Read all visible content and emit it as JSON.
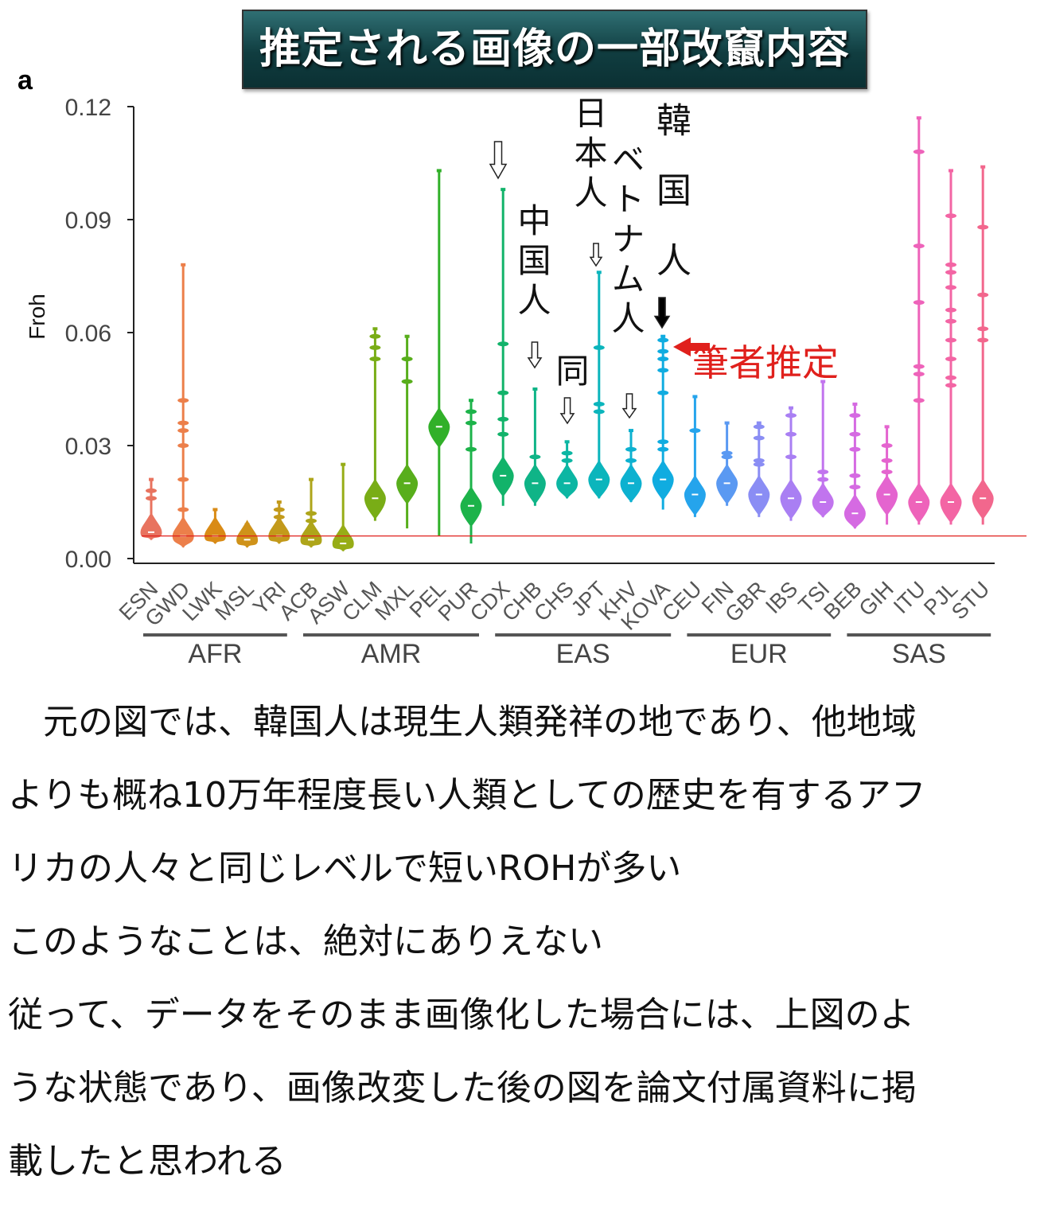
{
  "banner": {
    "title": "推定される画像の一部改竄内容"
  },
  "panel_label": "a",
  "chart_data": {
    "type": "violin",
    "ylabel": "Froh",
    "ylim": [
      0.0,
      0.12
    ],
    "yticks": [
      "0.00",
      "0.03",
      "0.06",
      "0.09",
      "0.12"
    ],
    "ytick_values": [
      0.0,
      0.03,
      0.06,
      0.09,
      0.12
    ],
    "reference_line": 0.006,
    "groups": [
      {
        "name": "AFR",
        "members": [
          "ESN",
          "GWD",
          "LWK",
          "MSL",
          "YRI"
        ]
      },
      {
        "name": "AMR",
        "members": [
          "ACB",
          "ASW",
          "CLM",
          "MXL",
          "PEL",
          "PUR"
        ]
      },
      {
        "name": "EAS",
        "members": [
          "CDX",
          "CHB",
          "CHS",
          "JPT",
          "KHV",
          "KOVA"
        ]
      },
      {
        "name": "EUR",
        "members": [
          "CEU",
          "FIN",
          "GBR",
          "IBS",
          "TSI"
        ]
      },
      {
        "name": "SAS",
        "members": [
          "BEB",
          "GIH",
          "ITU",
          "PJL",
          "STU"
        ]
      }
    ],
    "populations": [
      {
        "name": "ESN",
        "color": "#e8735f",
        "min": 0.005,
        "max": 0.021,
        "median": 0.007,
        "outliers": [
          0.016,
          0.018
        ]
      },
      {
        "name": "GWD",
        "color": "#ec7f4a",
        "min": 0.003,
        "max": 0.078,
        "median": 0.006,
        "outliers": [
          0.013,
          0.021,
          0.03,
          0.034,
          0.036,
          0.042
        ]
      },
      {
        "name": "LWK",
        "color": "#d98b17",
        "min": 0.004,
        "max": 0.013,
        "median": 0.006,
        "outliers": []
      },
      {
        "name": "MSL",
        "color": "#cf9219",
        "min": 0.003,
        "max": 0.009,
        "median": 0.005,
        "outliers": []
      },
      {
        "name": "YRI",
        "color": "#c39a1b",
        "min": 0.004,
        "max": 0.015,
        "median": 0.006,
        "outliers": [
          0.011,
          0.013
        ]
      },
      {
        "name": "ACB",
        "color": "#aea51a",
        "min": 0.003,
        "max": 0.021,
        "median": 0.005,
        "outliers": [
          0.01,
          0.012
        ]
      },
      {
        "name": "ASW",
        "color": "#97ad17",
        "min": 0.002,
        "max": 0.025,
        "median": 0.004,
        "outliers": []
      },
      {
        "name": "CLM",
        "color": "#79ad16",
        "min": 0.01,
        "max": 0.061,
        "median": 0.016,
        "outliers": [
          0.053,
          0.056,
          0.059
        ]
      },
      {
        "name": "MXL",
        "color": "#58ae1c",
        "min": 0.008,
        "max": 0.059,
        "median": 0.02,
        "outliers": [
          0.047,
          0.053
        ]
      },
      {
        "name": "PEL",
        "color": "#31b029",
        "min": 0.006,
        "max": 0.103,
        "median": 0.035,
        "outliers": []
      },
      {
        "name": "PUR",
        "color": "#1db34a",
        "min": 0.004,
        "max": 0.042,
        "median": 0.014,
        "outliers": [
          0.029,
          0.036,
          0.039
        ]
      },
      {
        "name": "CDX",
        "color": "#12b36a",
        "min": 0.014,
        "max": 0.098,
        "median": 0.022,
        "outliers": [
          0.033,
          0.037,
          0.044,
          0.057
        ]
      },
      {
        "name": "CHB",
        "color": "#0fb487",
        "min": 0.014,
        "max": 0.045,
        "median": 0.02,
        "outliers": [
          0.027
        ]
      },
      {
        "name": "CHS",
        "color": "#0cb6a3",
        "min": 0.016,
        "max": 0.031,
        "median": 0.02,
        "outliers": [
          0.026,
          0.028
        ]
      },
      {
        "name": "JPT",
        "color": "#0bb5bc",
        "min": 0.016,
        "max": 0.076,
        "median": 0.021,
        "outliers": [
          0.039,
          0.041,
          0.056
        ]
      },
      {
        "name": "KHV",
        "color": "#0db1d0",
        "min": 0.015,
        "max": 0.034,
        "median": 0.02,
        "outliers": [
          0.026,
          0.029
        ]
      },
      {
        "name": "KOVA",
        "color": "#10ace0",
        "min": 0.013,
        "max": 0.059,
        "median": 0.021,
        "outliers": [
          0.029,
          0.031,
          0.044,
          0.05,
          0.053,
          0.055,
          0.058
        ]
      },
      {
        "name": "CEU",
        "color": "#25a4ec",
        "min": 0.011,
        "max": 0.043,
        "median": 0.017,
        "outliers": [
          0.034
        ]
      },
      {
        "name": "FIN",
        "color": "#5a99f2",
        "min": 0.014,
        "max": 0.036,
        "median": 0.02,
        "outliers": [
          0.027,
          0.028
        ]
      },
      {
        "name": "GBR",
        "color": "#8a8df4",
        "min": 0.011,
        "max": 0.036,
        "median": 0.017,
        "outliers": [
          0.025,
          0.026,
          0.032,
          0.035
        ]
      },
      {
        "name": "IBS",
        "color": "#a97ff3",
        "min": 0.01,
        "max": 0.04,
        "median": 0.016,
        "outliers": [
          0.027,
          0.033,
          0.038
        ]
      },
      {
        "name": "TSI",
        "color": "#c174ee",
        "min": 0.011,
        "max": 0.047,
        "median": 0.015,
        "outliers": [
          0.021,
          0.023
        ]
      },
      {
        "name": "BEB",
        "color": "#d56ae2",
        "min": 0.008,
        "max": 0.041,
        "median": 0.012,
        "outliers": [
          0.019,
          0.022,
          0.029,
          0.033,
          0.038
        ]
      },
      {
        "name": "GIH",
        "color": "#e464cf",
        "min": 0.009,
        "max": 0.035,
        "median": 0.017,
        "outliers": [
          0.023,
          0.026,
          0.03
        ]
      },
      {
        "name": "ITU",
        "color": "#ee63ba",
        "min": 0.009,
        "max": 0.117,
        "median": 0.015,
        "outliers": [
          0.042,
          0.049,
          0.051,
          0.068,
          0.083,
          0.108
        ]
      },
      {
        "name": "PJL",
        "color": "#f365a4",
        "min": 0.009,
        "max": 0.103,
        "median": 0.015,
        "outliers": [
          0.046,
          0.048,
          0.053,
          0.058,
          0.063,
          0.066,
          0.072,
          0.076,
          0.078,
          0.091
        ]
      },
      {
        "name": "STU",
        "color": "#f2678d",
        "min": 0.009,
        "max": 0.104,
        "median": 0.016,
        "outliers": [
          0.058,
          0.061,
          0.07,
          0.088
        ]
      }
    ]
  },
  "annotations": {
    "chinese": "中国人",
    "same": "同",
    "japanese": "日本人",
    "vietnamese": "ベトナム人",
    "korean": "韓国人",
    "author_estimate": "筆者推定"
  },
  "colors": {
    "reference_line": "#e0201c",
    "note": "#e0201c",
    "banner": "#154a4d"
  },
  "body_text": [
    "　元の図では、韓国人は現生人類発祥の地であり、他地域",
    "よりも概ね10万年程度長い人類としての歴史を有するアフ",
    "リカの人々と同じレベルで短いROHが多い",
    "このようなことは、絶対にありえない",
    "従って、データをそのまま画像化した場合には、上図のよ",
    "うな状態であり、画像改変した後の図を論文付属資料に掲",
    "載したと思われる"
  ]
}
